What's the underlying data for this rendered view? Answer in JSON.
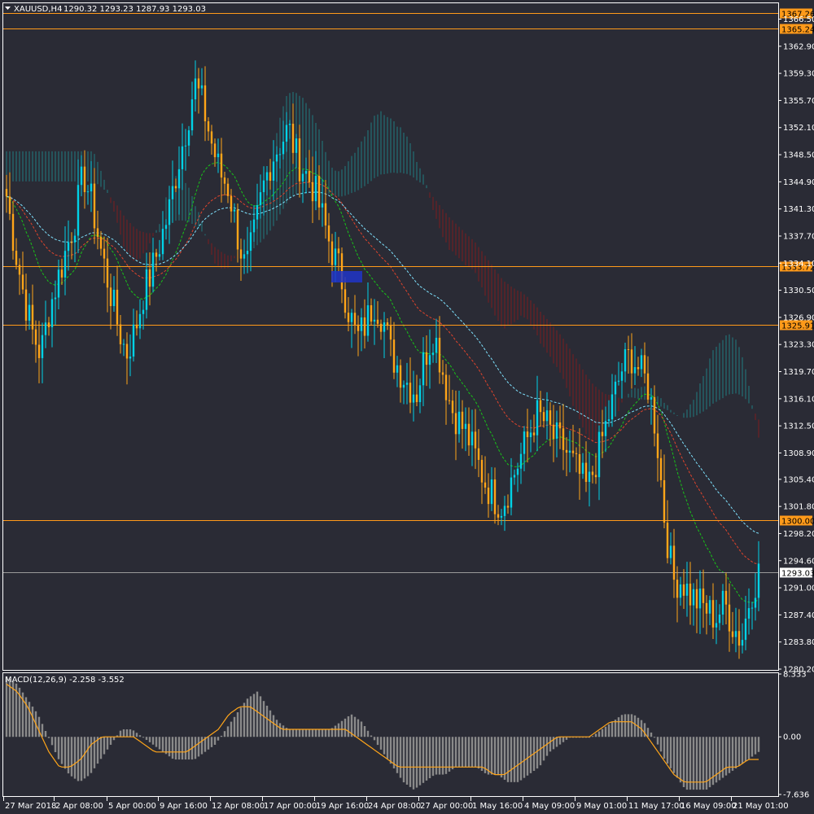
{
  "header": {
    "symbol": "XAUUSD,H4",
    "ohlc": "1290.32 1293.23 1287.93 1293.03",
    "menu_icon": "triangle-down-icon"
  },
  "macd_header": "MACD(12,26,9) -2.258 -3.552",
  "colors": {
    "background": "#2a2b35",
    "bull_candle": "#00d2e6",
    "bear_candle": "#ffa519",
    "cloud_bull": "#1f8b8f",
    "cloud_bear": "#8b1a1a",
    "line_green": "#18c418",
    "line_red": "#e0442c",
    "line_cyan": "#7fe3ff",
    "h_level": "#ff9a1a",
    "macd_hist": "#8a8a8a",
    "macd_signal": "#ffa519",
    "axis": "#ffffff",
    "box": "#2035c8"
  },
  "chart_data": [
    {
      "type": "candlestick",
      "title": "XAUUSD,H4",
      "ylim": [
        1280.2,
        1368.5
      ],
      "y_ticks": [
        "1366.50",
        "1362.90",
        "1359.30",
        "1355.70",
        "1352.10",
        "1348.50",
        "1344.90",
        "1341.30",
        "1337.70",
        "1334.10",
        "1330.50",
        "1326.90",
        "1323.30",
        "1319.70",
        "1316.10",
        "1312.50",
        "1308.90",
        "1305.40",
        "1301.80",
        "1298.20",
        "1294.60",
        "1291.00",
        "1287.40",
        "1283.80",
        "1280.20"
      ],
      "price_levels": [
        {
          "value": 1367.26,
          "label": "1367.26"
        },
        {
          "value": 1365.24,
          "label": "1365.24"
        },
        {
          "value": 1333.72,
          "label": "1333.72"
        },
        {
          "value": 1325.91,
          "label": "1325.91"
        },
        {
          "value": 1300.0,
          "label": "1300.00"
        }
      ],
      "current_price": {
        "value": 1293.03,
        "label": "1293.03"
      },
      "x_ticks": [
        "27 Mar 2018",
        "2 Apr 08:00",
        "5 Apr 00:00",
        "9 Apr 16:00",
        "12 Apr 08:00",
        "17 Apr 00:00",
        "19 Apr 16:00",
        "24 Apr 08:00",
        "27 Apr 00:00",
        "1 May 16:00",
        "4 May 09:00",
        "9 May 01:00",
        "11 May 17:00",
        "16 May 09:00",
        "21 May 01:00"
      ],
      "price_path": [
        1343,
        1336,
        1330,
        1325,
        1322,
        1328,
        1332,
        1336,
        1340,
        1346,
        1342,
        1336,
        1331,
        1326,
        1322,
        1325,
        1330,
        1333,
        1337,
        1341,
        1347,
        1352,
        1358,
        1355,
        1350,
        1346,
        1344,
        1338,
        1333,
        1338,
        1344,
        1348,
        1350,
        1352,
        1348,
        1346,
        1344,
        1340,
        1336,
        1333,
        1328,
        1324,
        1326,
        1329,
        1327,
        1322,
        1320,
        1318,
        1317,
        1322,
        1325,
        1320,
        1315,
        1313,
        1311,
        1308,
        1305,
        1303,
        1302,
        1305,
        1308,
        1311,
        1314,
        1313,
        1311,
        1310,
        1308,
        1306,
        1304,
        1308,
        1312,
        1316,
        1320,
        1322,
        1320,
        1318,
        1312,
        1300,
        1292,
        1292,
        1290,
        1289,
        1288,
        1287,
        1289,
        1286,
        1284,
        1290,
        1293
      ],
      "ichimoku_tenkan_label": "green",
      "ichimoku_kijun_label": "red",
      "ma_label": "cyan"
    },
    {
      "type": "histogram",
      "title": "MACD(12,26,9)",
      "ylim": [
        -7.636,
        8.333
      ],
      "y_ticks": [
        "8.333",
        "0.00",
        "-7.636"
      ],
      "main": -2.258,
      "signal": -3.552,
      "hist_path": [
        8,
        7,
        5,
        3,
        0,
        -3,
        -5,
        -6,
        -5,
        -3,
        -1,
        1,
        1,
        0,
        -1,
        -2,
        -3,
        -3,
        -3,
        -2,
        -1,
        1,
        3,
        5,
        6,
        4,
        2,
        1,
        1,
        1,
        1,
        1,
        2,
        3,
        2,
        0,
        -2,
        -4,
        -6,
        -7,
        -6,
        -5,
        -5,
        -4,
        -4,
        -4,
        -5,
        -5,
        -6,
        -6,
        -5,
        -4,
        -2,
        -1,
        0,
        0,
        0,
        1,
        2,
        3,
        3,
        2,
        0,
        -3,
        -5,
        -7,
        -7,
        -7,
        -6,
        -5,
        -4,
        -3,
        -2
      ],
      "signal_path": [
        7,
        6,
        4,
        1,
        -2,
        -4,
        -4,
        -3,
        -1,
        0,
        0,
        0,
        0,
        -1,
        -2,
        -2,
        -2,
        -2,
        -1,
        0,
        1,
        3,
        4,
        4,
        3,
        2,
        1,
        1,
        1,
        1,
        1,
        1,
        1,
        0,
        -1,
        -2,
        -3,
        -4,
        -4,
        -4,
        -4,
        -4,
        -4,
        -4,
        -4,
        -4,
        -5,
        -5,
        -4,
        -3,
        -2,
        -1,
        0,
        0,
        0,
        0,
        1,
        2,
        2,
        2,
        1,
        -1,
        -3,
        -5,
        -6,
        -6,
        -6,
        -5,
        -4,
        -4,
        -3,
        -3
      ]
    }
  ]
}
